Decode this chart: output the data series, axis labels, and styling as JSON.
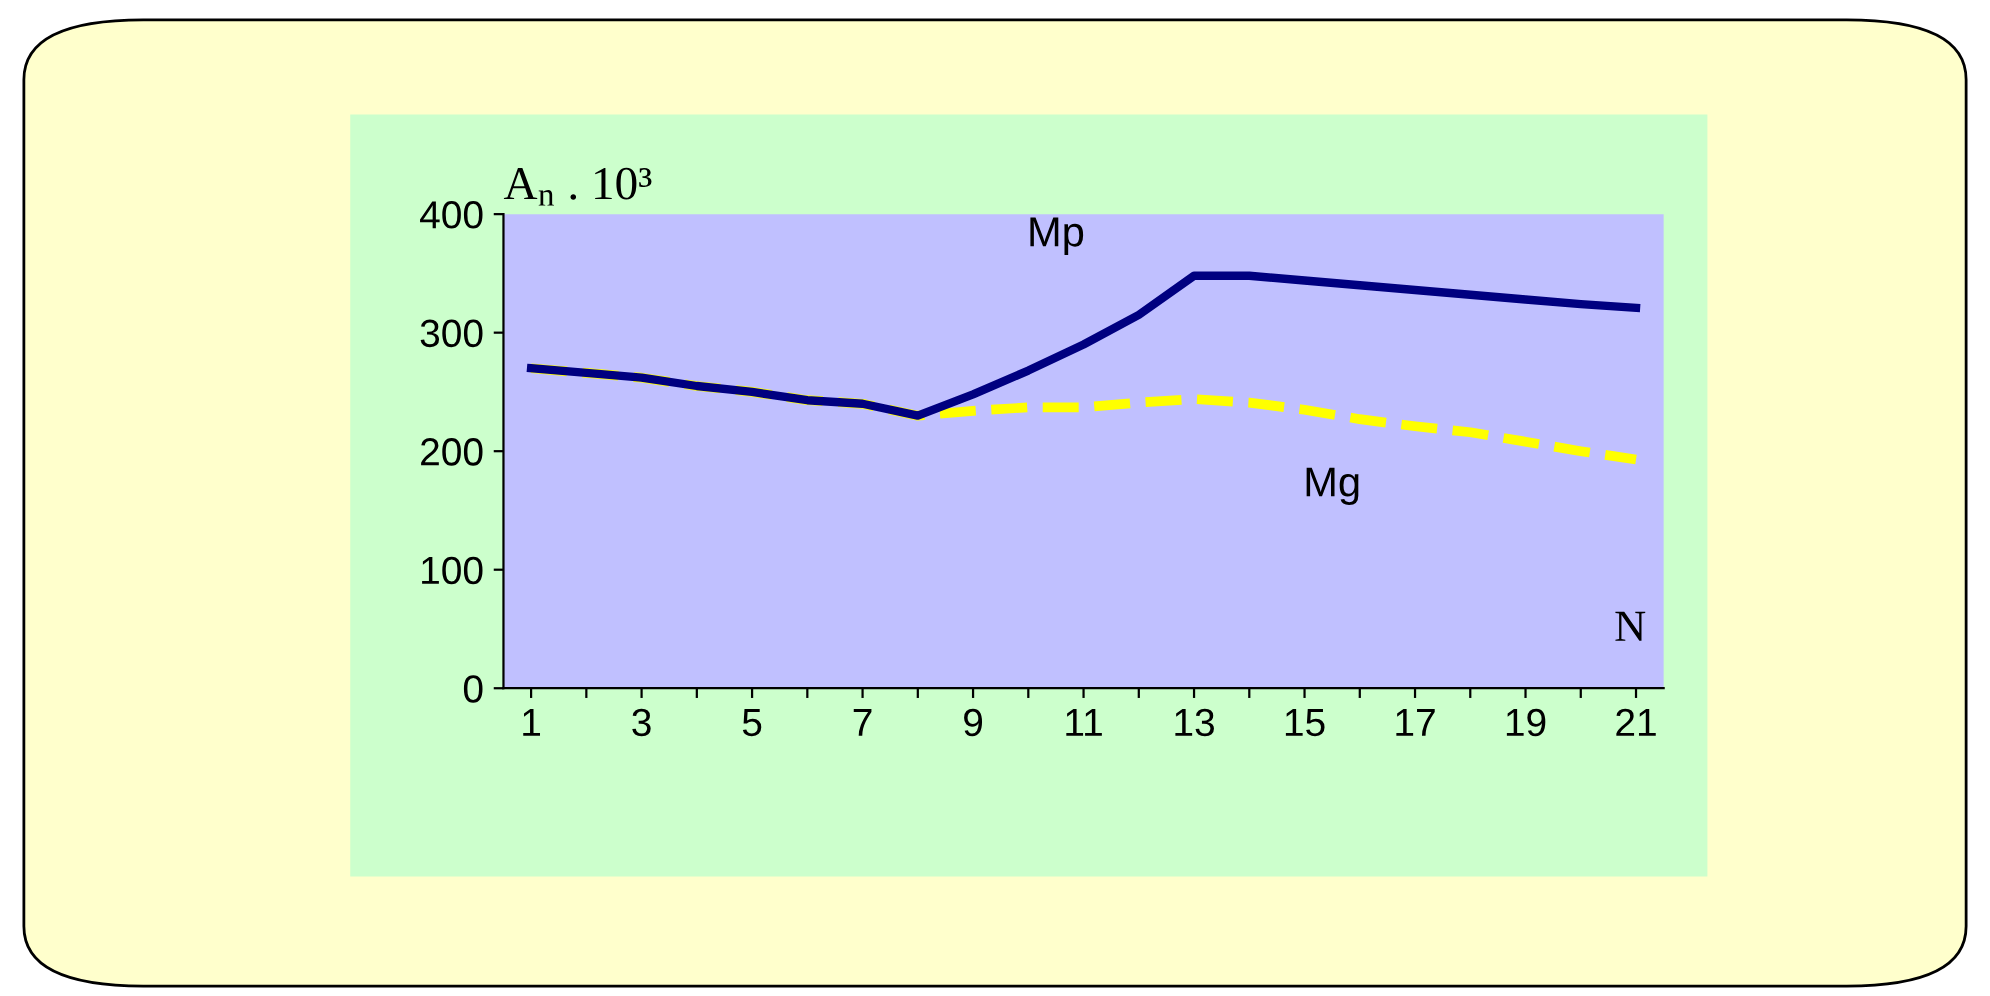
{
  "chart_data": {
    "type": "line",
    "ylabel": "A$_{n}$ . 10³",
    "xlabel": "N",
    "categories": [
      "1",
      null,
      "3",
      null,
      "5",
      null,
      "7",
      null,
      "9",
      null,
      "11",
      null,
      "13",
      null,
      "15",
      null,
      "17",
      null,
      "19",
      null,
      "21"
    ],
    "ylim": [
      0,
      400
    ],
    "yticks": [
      0,
      100,
      200,
      300,
      400
    ],
    "grid": false,
    "legend": false,
    "series": [
      {
        "name": "Mp",
        "color": "#000080",
        "line_style": "solid",
        "values": [
          270,
          266,
          262,
          255,
          250,
          243,
          240,
          230,
          248,
          268,
          290,
          315,
          348,
          348,
          344,
          340,
          336,
          332,
          328,
          324,
          321
        ]
      },
      {
        "name": "Mg",
        "color": "#ffff00",
        "line_style": "dashed",
        "values": [
          270,
          266,
          262,
          255,
          250,
          243,
          240,
          230,
          234,
          237,
          237,
          241,
          244,
          241,
          235,
          227,
          221,
          216,
          208,
          200,
          193
        ]
      }
    ]
  }
}
